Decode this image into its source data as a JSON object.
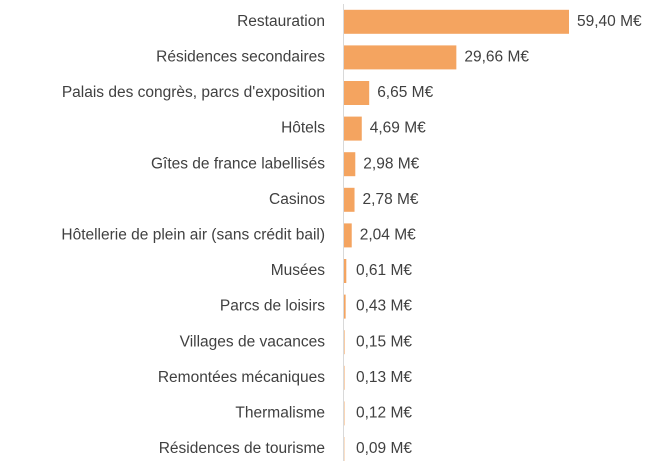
{
  "chart_data": {
    "type": "bar",
    "orientation": "horizontal",
    "color": "#f4a460",
    "categories": [
      "Restauration",
      "Résidences secondaires",
      "Palais des congrès, parcs d'exposition",
      "Hôtels",
      "Gîtes de france labellisés",
      "Casinos",
      "Hôtellerie de plein air (sans crédit bail)",
      "Musées",
      "Parcs de loisirs",
      "Villages de vacances",
      "Remontées mécaniques",
      "Thermalisme",
      "Résidences de tourisme"
    ],
    "values": [
      59.4,
      29.66,
      6.65,
      4.69,
      2.98,
      2.78,
      2.04,
      0.61,
      0.43,
      0.15,
      0.13,
      0.12,
      0.09
    ],
    "value_labels": [
      "59,40 M€",
      "29,66 M€",
      "6,65 M€",
      "4,69 M€",
      "2,98 M€",
      "2,78 M€",
      "2,04 M€",
      "0,61 M€",
      "0,43 M€",
      "0,15 M€",
      "0,13 M€",
      "0,12 M€",
      "0,09 M€"
    ]
  }
}
